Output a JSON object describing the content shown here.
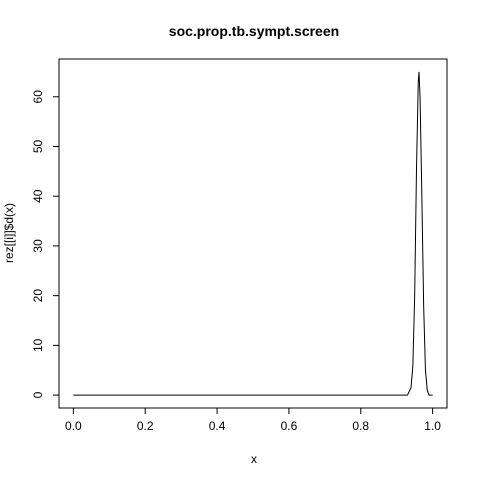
{
  "chart_data": {
    "type": "line",
    "title": "soc.prop.tb.sympt.screen",
    "xlabel": "x",
    "ylabel": "rez[[i]]$d(x)",
    "xlim": [
      -0.04,
      1.04
    ],
    "ylim": [
      -2.6,
      67.6
    ],
    "x_ticks": [
      0.0,
      0.2,
      0.4,
      0.6,
      0.8,
      1.0
    ],
    "x_tick_labels": [
      "0.0",
      "0.2",
      "0.4",
      "0.6",
      "0.8",
      "1.0"
    ],
    "y_ticks": [
      0,
      10,
      20,
      30,
      40,
      50,
      60
    ],
    "y_tick_labels": [
      "0",
      "10",
      "20",
      "30",
      "40",
      "50",
      "60"
    ],
    "grid": false,
    "series": [
      {
        "x": [
          0.0,
          0.2,
          0.4,
          0.6,
          0.8,
          0.9,
          0.93,
          0.94,
          0.945,
          0.95,
          0.955,
          0.96,
          0.962,
          0.965,
          0.97,
          0.975,
          0.98,
          0.985,
          0.99,
          0.995,
          1.0
        ],
        "y": [
          0,
          0,
          0,
          0,
          0,
          0,
          0,
          1.5,
          6,
          20,
          45,
          63,
          65,
          60,
          40,
          18,
          5,
          1,
          0,
          0,
          0
        ]
      }
    ]
  }
}
